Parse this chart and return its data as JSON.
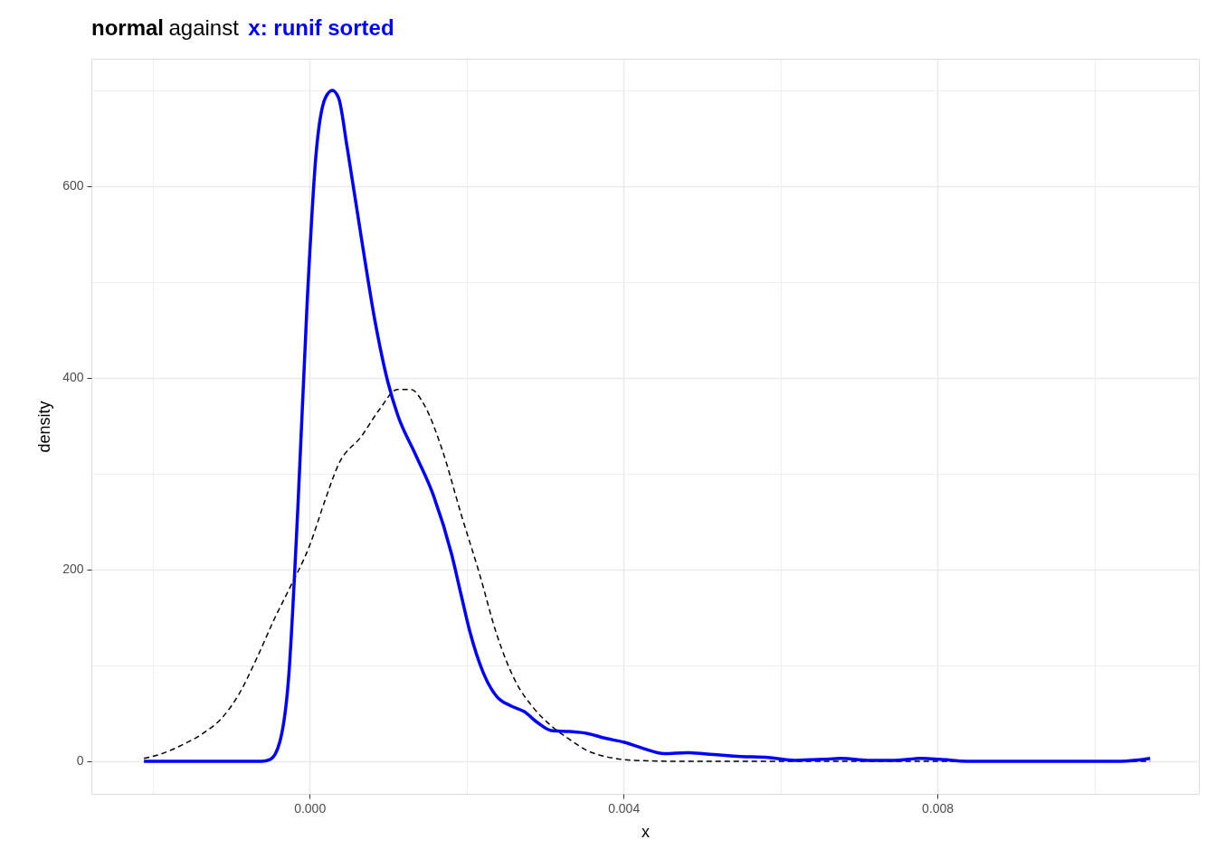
{
  "chart_data": {
    "type": "line",
    "title": "against",
    "xlabel": "x",
    "ylabel": "density",
    "xlim": [
      -0.00278,
      0.01133
    ],
    "ylim": [
      -34,
      733
    ],
    "xticks": [
      {
        "value": -0.002,
        "label": null
      },
      {
        "value": 0,
        "label": "0.000"
      },
      {
        "value": 0.002,
        "label": null
      },
      {
        "value": 0.004,
        "label": "0.004"
      },
      {
        "value": 0.006,
        "label": null
      },
      {
        "value": 0.008,
        "label": "0.008"
      },
      {
        "value": 0.01,
        "label": null
      }
    ],
    "yticks": [
      0,
      {
        "value": 100,
        "label": null
      },
      200,
      {
        "value": 300,
        "label": null
      },
      400,
      {
        "value": 500,
        "label": null
      },
      600,
      {
        "value": 700,
        "label": null
      }
    ],
    "grid": true,
    "legend": false,
    "series": [
      {
        "name": "normal",
        "color": "#000000",
        "line_style": "dashed",
        "x": [
          -0.00211,
          -0.00188,
          -0.00165,
          -0.00136,
          -0.00113,
          -0.0009,
          -0.00067,
          -0.00044,
          -0.00027,
          0,
          0.0002,
          0.00037,
          0.00066,
          0.00089,
          0.00112,
          0.00129,
          0.00146,
          0.00169,
          0.00193,
          0.00216,
          0.00239,
          0.00262,
          0.00285,
          0.00308,
          0.00331,
          0.00354,
          0.00377,
          0.00412,
          0.00469,
          0.01071
        ],
        "values": [
          3,
          8,
          16,
          29,
          44,
          70,
          108,
          150,
          178,
          225,
          273,
          310,
          339,
          367,
          388,
          388,
          372,
          325,
          258,
          197,
          131,
          84,
          56,
          37,
          23,
          11,
          5,
          1,
          0,
          0
        ]
      },
      {
        "name": "x: runif sorted",
        "color": "#0000ff",
        "line_style": "solid",
        "x": [
          -0.00211,
          -0.00061,
          -0.0005,
          -0.00038,
          -0.00027,
          -0.00015,
          -3e-05,
          8e-05,
          0.0002,
          0.00029,
          0.00037,
          0.00048,
          0.00066,
          0.00083,
          0.001,
          0.00112,
          0.00135,
          0.00158,
          0.00181,
          0.00193,
          0.00204,
          0.00221,
          0.00239,
          0.00256,
          0.00273,
          0.00291,
          0.00308,
          0.00331,
          0.00354,
          0.00377,
          0.004,
          0.00423,
          0.00452,
          0.00481,
          0.00515,
          0.0055,
          0.00584,
          0.00619,
          0.00654,
          0.00677,
          0.00711,
          0.00746,
          0.0078,
          0.00803,
          0.00838,
          0.0093,
          0.01034,
          0.01071
        ],
        "values": [
          0,
          0,
          2,
          20,
          84,
          263,
          480,
          631,
          692,
          700,
          692,
          640,
          546,
          461,
          395,
          362,
          320,
          277,
          216,
          174,
          136,
          93,
          67,
          58,
          52,
          40,
          32,
          31,
          29,
          24,
          20,
          14,
          8,
          9,
          7,
          5,
          4,
          1,
          2,
          3,
          1,
          1,
          3,
          2,
          0,
          0,
          0,
          3
        ]
      }
    ]
  }
}
